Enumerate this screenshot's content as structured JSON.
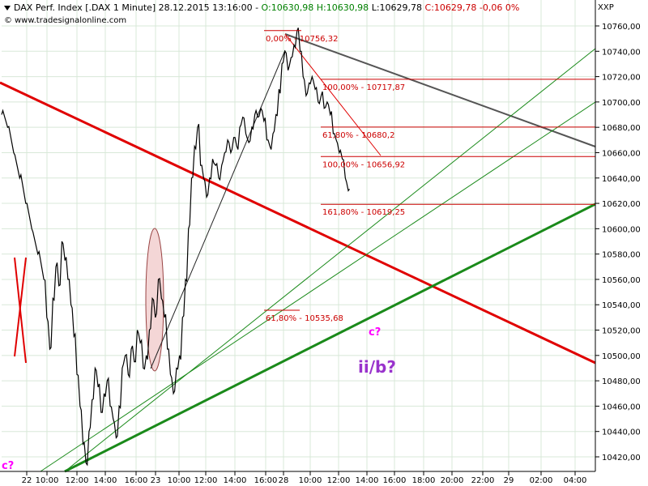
{
  "header": {
    "instrument": "DAX Perf. Index [.DAX  1 Minute] 28.12.2015 13:16:00 -",
    "open": "O:10630,98",
    "high": "H:10630,98",
    "low": "L:10629,78",
    "close": "C:10629,78",
    "change": "-0,06 0%",
    "website": "www.tradesignalonline.com",
    "unit": "XXP"
  },
  "colors": {
    "price": "#000000",
    "red_trend": "#e00000",
    "green_trend": "#1a8a1a",
    "grey_trend": "#555555",
    "fib": "#cc0000",
    "ellipse_fill": "#f4d6d6",
    "grid": "#d8e8d8",
    "wave_label": "#9933cc",
    "wave_small": "#ff00ff"
  },
  "chart_data": {
    "type": "line",
    "ylim": [
      10410,
      10770
    ],
    "y_ticks": [
      10420,
      10440,
      10460,
      10480,
      10500,
      10520,
      10540,
      10560,
      10580,
      10600,
      10620,
      10640,
      10660,
      10680,
      10700,
      10720,
      10740,
      10760
    ],
    "y_tick_labels": [
      "10420,00",
      "10440,00",
      "10460,00",
      "10480,00",
      "10500,00",
      "10520,00",
      "10540,00",
      "10560,00",
      "10580,00",
      "10600,00",
      "10620,00",
      "10640,00",
      "10660,00",
      "10680,00",
      "10700,00",
      "10720,00",
      "10740,00",
      "10760,00"
    ],
    "x_tick_labels": [
      "22",
      "10:00",
      "12:00",
      "14:00",
      "16:00",
      "23",
      "10:00",
      "12:00",
      "14:00",
      "16:00",
      "28",
      "10:00",
      "12:00",
      "14:00",
      "16:00",
      "18:00",
      "20:00",
      "22:00",
      "29",
      "02:00",
      "04:00"
    ],
    "price_path": [
      [
        0,
        10690
      ],
      [
        2,
        10680
      ],
      [
        4,
        10660
      ],
      [
        6,
        10640
      ],
      [
        8,
        10620
      ],
      [
        10,
        10600
      ],
      [
        12,
        10580
      ],
      [
        14,
        10560
      ],
      [
        15,
        10530
      ],
      [
        16,
        10505
      ],
      [
        17,
        10545
      ],
      [
        18,
        10570
      ],
      [
        19,
        10555
      ],
      [
        20,
        10590
      ],
      [
        21,
        10575
      ],
      [
        22,
        10560
      ],
      [
        23,
        10540
      ],
      [
        24,
        10515
      ],
      [
        25,
        10485
      ],
      [
        26,
        10460
      ],
      [
        27,
        10430
      ],
      [
        28,
        10415
      ],
      [
        29,
        10440
      ],
      [
        30,
        10465
      ],
      [
        31,
        10490
      ],
      [
        32,
        10475
      ],
      [
        33,
        10455
      ],
      [
        34,
        10470
      ],
      [
        35,
        10480
      ],
      [
        36,
        10460
      ],
      [
        37,
        10450
      ],
      [
        38,
        10435
      ],
      [
        39,
        10460
      ],
      [
        40,
        10490
      ],
      [
        41,
        10500
      ],
      [
        42,
        10485
      ],
      [
        43,
        10505
      ],
      [
        44,
        10495
      ],
      [
        45,
        10520
      ],
      [
        46,
        10510
      ],
      [
        47,
        10490
      ],
      [
        48,
        10500
      ],
      [
        49,
        10520
      ],
      [
        50,
        10545
      ],
      [
        51,
        10530
      ],
      [
        52,
        10560
      ],
      [
        53,
        10545
      ],
      [
        54,
        10530
      ],
      [
        55,
        10505
      ],
      [
        56,
        10485
      ],
      [
        57,
        10470
      ],
      [
        58,
        10490
      ],
      [
        59,
        10500
      ],
      [
        60,
        10530
      ],
      [
        61,
        10560
      ],
      [
        62,
        10600
      ],
      [
        63,
        10640
      ],
      [
        64,
        10665
      ],
      [
        65,
        10680
      ],
      [
        66,
        10650
      ],
      [
        67,
        10640
      ],
      [
        68,
        10625
      ],
      [
        69,
        10640
      ],
      [
        70,
        10655
      ],
      [
        71,
        10650
      ],
      [
        72,
        10640
      ],
      [
        73,
        10650
      ],
      [
        74,
        10660
      ],
      [
        75,
        10670
      ],
      [
        76,
        10660
      ],
      [
        77,
        10672
      ],
      [
        78,
        10665
      ],
      [
        79,
        10680
      ],
      [
        80,
        10688
      ],
      [
        81,
        10675
      ],
      [
        82,
        10668
      ],
      [
        83,
        10680
      ],
      [
        84,
        10690
      ],
      [
        85,
        10688
      ],
      [
        86,
        10695
      ],
      [
        87,
        10685
      ],
      [
        88,
        10670
      ],
      [
        89,
        10665
      ],
      [
        90,
        10675
      ],
      [
        91,
        10690
      ],
      [
        92,
        10710
      ],
      [
        93,
        10730
      ],
      [
        94,
        10740
      ],
      [
        95,
        10725
      ],
      [
        96,
        10735
      ],
      [
        97,
        10745
      ],
      [
        98,
        10756
      ],
      [
        99,
        10740
      ],
      [
        100,
        10720
      ],
      [
        101,
        10705
      ],
      [
        102,
        10715
      ],
      [
        103,
        10720
      ],
      [
        104,
        10710
      ],
      [
        105,
        10700
      ],
      [
        106,
        10705
      ],
      [
        107,
        10695
      ],
      [
        108,
        10700
      ],
      [
        109,
        10690
      ],
      [
        110,
        10675
      ],
      [
        111,
        10670
      ],
      [
        112,
        10660
      ],
      [
        113,
        10655
      ],
      [
        114,
        10640
      ],
      [
        115,
        10630
      ]
    ],
    "price_x_range": [
      0,
      115
    ],
    "price_plot_x": [
      2,
      430
    ],
    "trend_lines": [
      {
        "name": "red-resistance",
        "from": [
          "21 08:00",
          10714
        ],
        "to": [
          "29 05:00",
          10496
        ]
      },
      {
        "name": "grey-channel-top",
        "from": [
          "28 09:00",
          10758
        ],
        "to": [
          "29 05:00",
          10665
        ]
      },
      {
        "name": "green-support-thick",
        "from": [
          "22 12:00",
          10412
        ],
        "to": [
          "29 05:00",
          10620
        ]
      },
      {
        "name": "green-upper-1",
        "from": [
          "22 12:00",
          10412
        ],
        "to": [
          "29 05:00",
          10742
        ]
      },
      {
        "name": "green-upper-2",
        "from": [
          "22 10:00",
          10412
        ],
        "to": [
          "29 05:00",
          10705
        ]
      }
    ],
    "fib_levels": [
      {
        "label": "0,00% - 10756,32",
        "value": 10756.32
      },
      {
        "label": "100,00% - 10717,87",
        "value": 10717.87
      },
      {
        "label": "61,80% - 10680,2",
        "value": 10680.2
      },
      {
        "label": "100,00% - 10656,92",
        "value": 10656.92
      },
      {
        "label": "161,80% - 10619,25",
        "value": 10619.25
      },
      {
        "label": "61,80% - 10535,68",
        "value": 10535.68
      }
    ],
    "annotations": [
      {
        "label": "ii/b?",
        "kind": "big"
      },
      {
        "label": "c?",
        "kind": "small"
      },
      {
        "label": "c?",
        "kind": "small"
      }
    ]
  }
}
